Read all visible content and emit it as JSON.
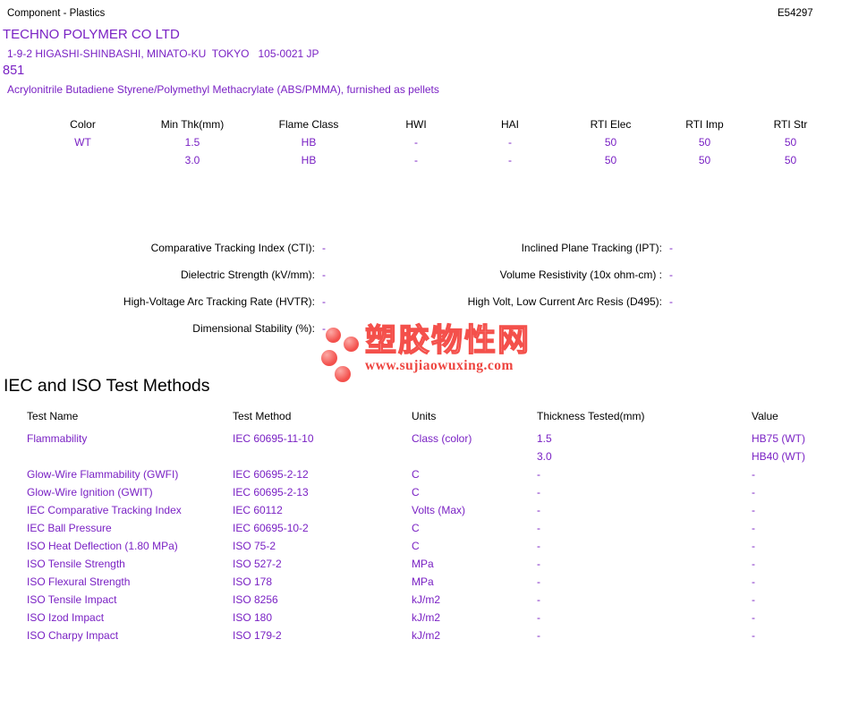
{
  "page": {
    "doc_type": "Component - Plastics",
    "file_number": "E54297"
  },
  "company": {
    "name": "TECHNO POLYMER CO LTD",
    "address": "1-9-2 HIGASHI-SHINBASHI, MINATO-KU  TOKYO   105-0021 JP",
    "model": "851",
    "description": "Acrylonitrile Butadiene Styrene/Polymethyl Methacrylate (ABS/PMMA), furnished as pellets"
  },
  "ratings_table": {
    "columns": [
      "Color",
      "Min Thk(mm)",
      "Flame Class",
      "HWI",
      "HAI",
      "RTI Elec",
      "RTI Imp",
      "RTI Str"
    ],
    "rows": [
      [
        "WT",
        "1.5",
        "HB",
        "-",
        "-",
        "50",
        "50",
        "50"
      ],
      [
        "",
        "3.0",
        "HB",
        "-",
        "-",
        "50",
        "50",
        "50"
      ]
    ]
  },
  "electrical": {
    "left": [
      {
        "label": "Comparative Tracking Index (CTI):",
        "value": "-"
      },
      {
        "label": "Dielectric Strength (kV/mm):",
        "value": "-"
      },
      {
        "label": "High-Voltage Arc Tracking Rate (HVTR):",
        "value": "-"
      },
      {
        "label": "Dimensional Stability (%):",
        "value": "-"
      }
    ],
    "right": [
      {
        "label": "Inclined Plane Tracking (IPT):",
        "value": "-"
      },
      {
        "label": "Volume Resistivity (10x ohm-cm) :",
        "value": "-"
      },
      {
        "label": "High Volt, Low Current Arc Resis (D495):",
        "value": "-"
      }
    ]
  },
  "logo": {
    "text_cn": "塑胶物性网",
    "url": "www.sujiaowuxing.com",
    "accent_color": "#f4504b"
  },
  "test_methods": {
    "heading": "IEC and ISO Test Methods",
    "columns": [
      "Test Name",
      "Test Method",
      "Units",
      "Thickness Tested(mm)",
      "Value"
    ],
    "rows": [
      [
        "Flammability",
        "IEC 60695-11-10",
        "Class (color)",
        "1.5",
        "HB75 (WT)"
      ],
      [
        "",
        "",
        "",
        "3.0",
        "HB40 (WT)"
      ],
      [
        "Glow-Wire Flammability (GWFI)",
        "IEC 60695-2-12",
        "C",
        "-",
        "-"
      ],
      [
        "Glow-Wire Ignition (GWIT)",
        "IEC 60695-2-13",
        "C",
        "-",
        "-"
      ],
      [
        "IEC Comparative Tracking Index",
        "IEC 60112",
        "Volts (Max)",
        "-",
        "-"
      ],
      [
        "IEC Ball Pressure",
        "IEC 60695-10-2",
        "C",
        "-",
        "-"
      ],
      [
        "ISO Heat Deflection (1.80 MPa)",
        "ISO 75-2",
        "C",
        "-",
        "-"
      ],
      [
        "ISO Tensile Strength",
        "ISO 527-2",
        "MPa",
        "-",
        "-"
      ],
      [
        "ISO Flexural Strength",
        "ISO 178",
        "MPa",
        "-",
        "-"
      ],
      [
        "ISO Tensile Impact",
        "ISO 8256",
        "kJ/m2",
        "-",
        "-"
      ],
      [
        "ISO Izod Impact",
        "ISO 180",
        "kJ/m2",
        "-",
        "-"
      ],
      [
        "ISO Charpy Impact",
        "ISO 179-2",
        "kJ/m2",
        "-",
        "-"
      ]
    ]
  },
  "colors": {
    "link_purple": "#7a22c4",
    "text_black": "#000000",
    "logo_red": "#f4504b"
  }
}
